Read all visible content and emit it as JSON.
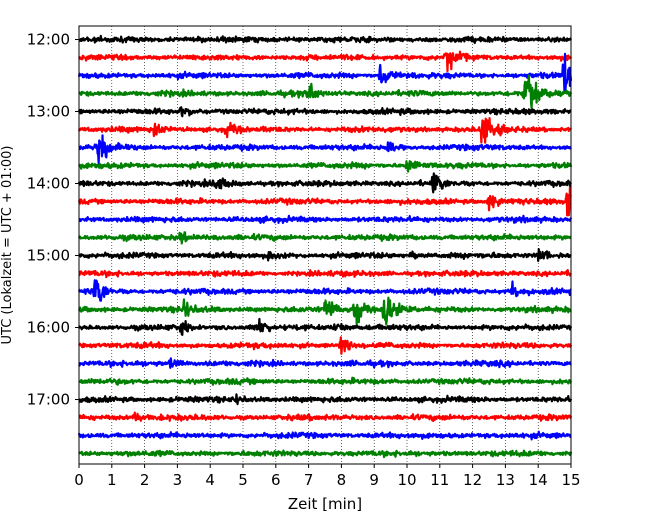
{
  "chart_data": {
    "type": "line",
    "title": "",
    "xlabel": "Zeit  [min]",
    "ylabel": "UTC (Lokalzeit = UTC + 01:00)",
    "xlim": [
      0,
      15
    ],
    "x_ticks": [
      "0",
      "1",
      "2",
      "3",
      "4",
      "5",
      "6",
      "7",
      "8",
      "9",
      "10",
      "11",
      "12",
      "13",
      "14",
      "15"
    ],
    "y_ticks": [
      "12:00",
      "13:00",
      "14:00",
      "15:00",
      "16:00",
      "17:00"
    ],
    "grid": "vertical dotted",
    "line_colors": [
      "#000000",
      "#ff0000",
      "#0000ff",
      "#008000"
    ],
    "trace_interval_minutes": 15,
    "traces": [
      {
        "start": "12:00",
        "color": "#000000",
        "events": []
      },
      {
        "start": "12:15",
        "color": "#ff0000",
        "events": [
          {
            "t": 11.2,
            "amp": 1.3
          }
        ]
      },
      {
        "start": "12:30",
        "color": "#0000ff",
        "events": [
          {
            "t": 9.2,
            "amp": 1.0
          },
          {
            "t": 14.8,
            "amp": 2.2
          }
        ]
      },
      {
        "start": "12:45",
        "color": "#008000",
        "events": [
          {
            "t": 6.9,
            "amp": 1.0
          },
          {
            "t": 13.6,
            "amp": 2.5
          }
        ]
      },
      {
        "start": "13:00",
        "color": "#000000",
        "events": [
          {
            "t": 3.1,
            "amp": 0.6
          }
        ]
      },
      {
        "start": "13:15",
        "color": "#ff0000",
        "events": [
          {
            "t": 2.3,
            "amp": 0.7
          },
          {
            "t": 4.5,
            "amp": 0.7
          },
          {
            "t": 12.3,
            "amp": 2.0
          }
        ]
      },
      {
        "start": "13:30",
        "color": "#0000ff",
        "events": [
          {
            "t": 0.6,
            "amp": 1.3
          },
          {
            "t": 9.4,
            "amp": 0.7
          }
        ]
      },
      {
        "start": "13:45",
        "color": "#008000",
        "events": [
          {
            "t": 10.0,
            "amp": 0.7
          }
        ]
      },
      {
        "start": "14:00",
        "color": "#000000",
        "events": [
          {
            "t": 4.2,
            "amp": 0.8
          },
          {
            "t": 10.8,
            "amp": 0.9
          }
        ]
      },
      {
        "start": "14:15",
        "color": "#ff0000",
        "events": [
          {
            "t": 12.5,
            "amp": 0.7
          },
          {
            "t": 14.9,
            "amp": 1.5
          }
        ]
      },
      {
        "start": "14:30",
        "color": "#0000ff",
        "events": []
      },
      {
        "start": "14:45",
        "color": "#008000",
        "events": [
          {
            "t": 3.1,
            "amp": 0.6
          }
        ]
      },
      {
        "start": "15:00",
        "color": "#000000",
        "events": [
          {
            "t": 5.8,
            "amp": 0.6
          },
          {
            "t": 10.1,
            "amp": 0.5
          },
          {
            "t": 14.0,
            "amp": 0.6
          }
        ]
      },
      {
        "start": "15:15",
        "color": "#ff0000",
        "events": []
      },
      {
        "start": "15:30",
        "color": "#0000ff",
        "events": [
          {
            "t": 0.5,
            "amp": 1.4
          },
          {
            "t": 13.2,
            "amp": 0.7
          }
        ]
      },
      {
        "start": "15:45",
        "color": "#008000",
        "events": [
          {
            "t": 3.2,
            "amp": 0.8
          },
          {
            "t": 7.5,
            "amp": 0.9
          },
          {
            "t": 8.4,
            "amp": 1.3
          },
          {
            "t": 9.3,
            "amp": 2.0
          }
        ]
      },
      {
        "start": "16:00",
        "color": "#000000",
        "events": [
          {
            "t": 3.1,
            "amp": 0.6
          },
          {
            "t": 5.4,
            "amp": 0.6
          },
          {
            "t": 7.8,
            "amp": 0.5
          }
        ]
      },
      {
        "start": "16:15",
        "color": "#ff0000",
        "events": [
          {
            "t": 8.0,
            "amp": 0.7
          }
        ]
      },
      {
        "start": "16:30",
        "color": "#0000ff",
        "events": [
          {
            "t": 2.8,
            "amp": 0.4
          }
        ]
      },
      {
        "start": "16:45",
        "color": "#008000",
        "events": []
      },
      {
        "start": "17:00",
        "color": "#000000",
        "events": [
          {
            "t": 4.8,
            "amp": 0.4
          }
        ]
      },
      {
        "start": "17:15",
        "color": "#ff0000",
        "events": [
          {
            "t": 1.7,
            "amp": 0.5
          }
        ]
      },
      {
        "start": "17:30",
        "color": "#0000ff",
        "events": []
      },
      {
        "start": "17:45",
        "color": "#008000",
        "events": []
      }
    ]
  }
}
